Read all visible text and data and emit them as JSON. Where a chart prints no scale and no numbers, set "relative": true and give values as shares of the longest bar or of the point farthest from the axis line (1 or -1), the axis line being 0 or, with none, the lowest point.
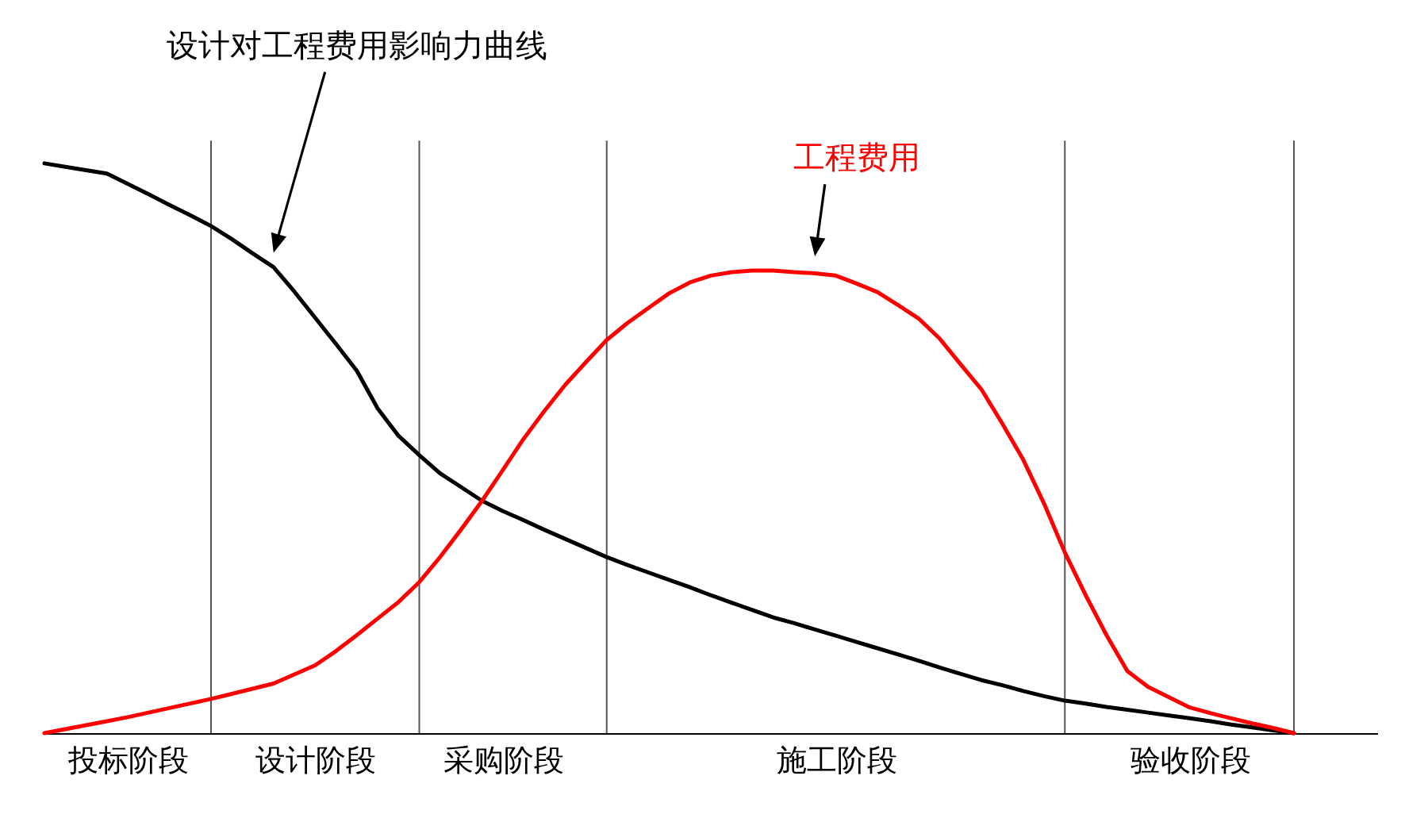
{
  "chart_data": {
    "type": "line",
    "relative": true,
    "tick_labels": "x",
    "categories": [
      null,
      null,
      null,
      null,
      "投标阶段",
      null,
      null,
      null,
      null,
      null,
      null,
      null,
      null,
      "设计阶段",
      null,
      null,
      null,
      null,
      null,
      null,
      null,
      null,
      "采购阶段",
      null,
      null,
      null,
      null,
      null,
      null,
      null,
      null,
      null,
      null,
      null,
      null,
      null,
      null,
      null,
      "施工阶段",
      null,
      null,
      null,
      null,
      null,
      null,
      null,
      null,
      null,
      null,
      null,
      null,
      null,
      null,
      null,
      null,
      "验收阶段",
      null,
      null,
      null,
      null,
      null,
      null,
      null,
      null,
      null
    ],
    "series": [
      {
        "name": "设计对工程费用影响力曲线",
        "color": "#000000",
        "values": [
          1,
          0.994,
          0.988,
          0.982,
          0.964,
          0.946,
          0.927,
          0.909,
          0.89,
          0.867,
          0.842,
          0.818,
          0.775,
          0.729,
          0.683,
          0.636,
          0.57,
          0.522,
          0.488,
          0.456,
          0.432,
          0.408,
          0.39,
          0.374,
          0.357,
          0.341,
          0.325,
          0.309,
          0.295,
          0.282,
          0.269,
          0.256,
          0.242,
          0.229,
          0.216,
          0.203,
          0.193,
          0.182,
          0.171,
          0.16,
          0.149,
          0.138,
          0.127,
          0.115,
          0.104,
          0.093,
          0.084,
          0.074,
          0.065,
          0.057,
          0.052,
          0.046,
          0.041,
          0.036,
          0.031,
          0.026,
          0.021,
          0.015,
          0.01,
          0.005,
          0,
          null,
          null,
          null,
          null
        ]
      },
      {
        "name": "工程费用",
        "color": "#ff0000",
        "values": [
          0,
          0.007,
          0.014,
          0.021,
          0.028,
          0.036,
          0.044,
          0.052,
          0.06,
          0.069,
          0.078,
          0.087,
          0.103,
          0.119,
          0.144,
          0.172,
          0.201,
          0.23,
          0.265,
          0.309,
          0.357,
          0.407,
          0.461,
          0.516,
          0.565,
          0.611,
          0.651,
          0.69,
          0.72,
          0.746,
          0.772,
          0.791,
          0.803,
          0.809,
          0.812,
          0.812,
          0.809,
          0.807,
          0.803,
          0.789,
          0.774,
          0.751,
          0.727,
          0.692,
          0.647,
          0.603,
          0.543,
          0.48,
          0.403,
          0.317,
          0.242,
          0.172,
          0.109,
          0.081,
          0.063,
          0.045,
          0.035,
          0.026,
          0.017,
          0.009,
          0,
          null,
          null,
          null,
          null
        ]
      }
    ]
  }
}
